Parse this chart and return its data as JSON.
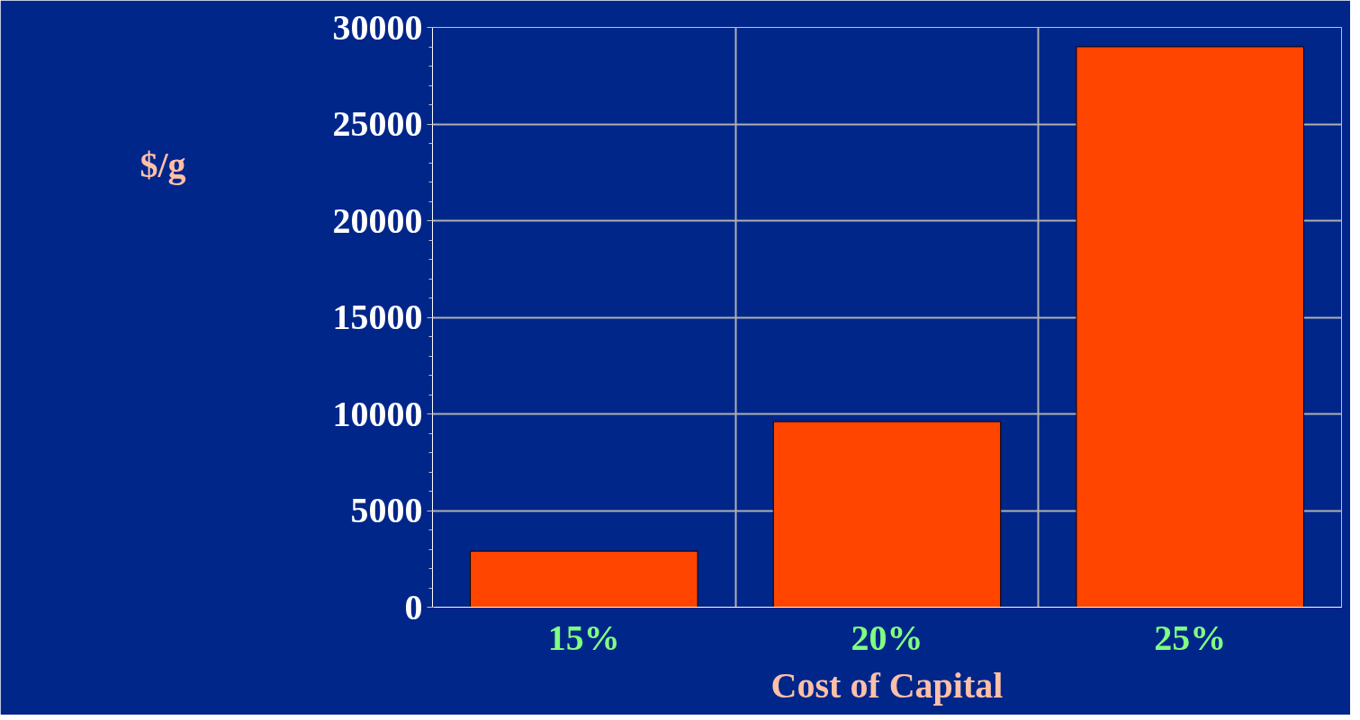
{
  "chart_data": {
    "type": "bar",
    "xlabel": "Cost of Capital",
    "ylabel": "$/g",
    "categories": [
      "15%",
      "20%",
      "25%"
    ],
    "values": [
      2900,
      9600,
      29000
    ],
    "color": "#ff4500",
    "ylim": [
      0,
      30000
    ],
    "yticks": [
      0,
      5000,
      10000,
      15000,
      20000,
      25000,
      30000
    ],
    "grid": true
  }
}
